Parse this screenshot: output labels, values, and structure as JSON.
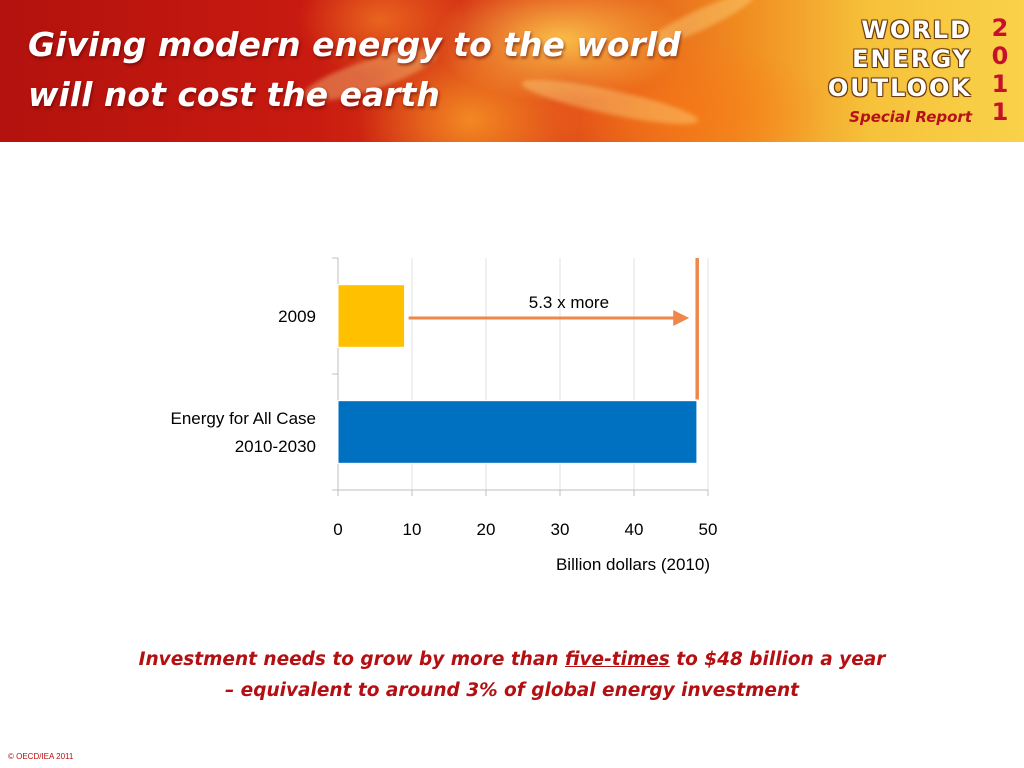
{
  "header": {
    "title_line1": "Giving modern energy to the world",
    "title_line2": "will not cost the earth",
    "logo": {
      "line1": "WORLD",
      "line2": "ENERGY",
      "line3": "OUTLOOK",
      "subtitle": "Special Report",
      "year_digits": [
        "2",
        "0",
        "1",
        "1"
      ]
    }
  },
  "chart_data": {
    "type": "bar",
    "orientation": "horizontal",
    "categories": [
      [
        "2009"
      ],
      [
        "Energy for All Case",
        "2010-2030"
      ]
    ],
    "series": [
      {
        "values": [
          9,
          48.5
        ],
        "colors": [
          "#ffc000",
          "#0070c0"
        ]
      }
    ],
    "xlabel": "Billion dollars (2010)",
    "xlim": [
      0,
      50
    ],
    "xticks": [
      "0",
      "10",
      "20",
      "30",
      "40",
      "50"
    ],
    "grid": true,
    "annotation": {
      "label": "5.3 x more",
      "arrow_from": 9,
      "arrow_to": 48,
      "reference_line_x": 48,
      "color": "#f0874a"
    }
  },
  "caption": {
    "part1": "Investment needs to grow by more than ",
    "emphasis": "five-times",
    "part2": " to $48 billion a year",
    "line2": "–  equivalent to around 3% of global energy investment"
  },
  "footer": {
    "copyright": "© OECD/IEA 2011"
  }
}
